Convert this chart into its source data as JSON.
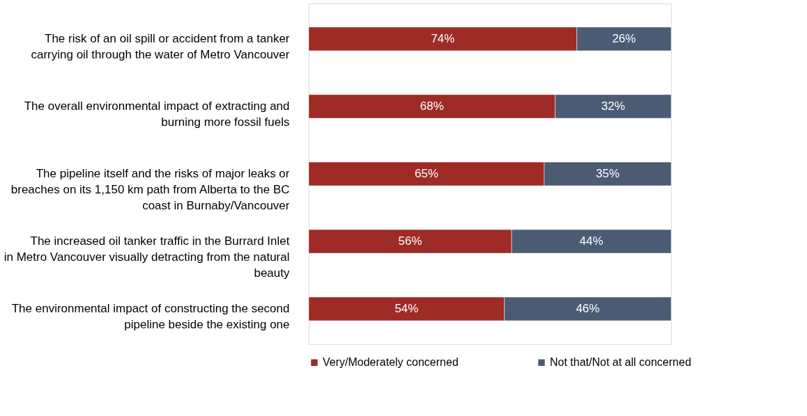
{
  "chart_data": {
    "type": "bar",
    "orientation": "horizontal",
    "stacked": true,
    "legend": "bottom",
    "grid": false,
    "tick_labels": "y",
    "categories": [
      "The risk of an oil spill or accident from a tanker carrying oil through the water of Metro Vancouver",
      "The overall environmental impact of extracting and burning more fossil fuels",
      "The pipeline itself and the risks of major leaks or breaches on its 1,150 km path from Alberta to the BC coast in Burnaby/Vancouver",
      "The increased oil tanker traffic in the Burrard Inlet in Metro Vancouver visually detracting from the natural beauty",
      "The environmental impact of constructing the second pipeline beside the existing one"
    ],
    "series": [
      {
        "name": "Very/Moderately concerned",
        "color": "#9e2b26",
        "values": [
          74,
          68,
          65,
          56,
          54
        ],
        "value_labels": [
          "74%",
          "68%",
          "65%",
          "56%",
          "54%"
        ]
      },
      {
        "name": "Not that/Not at all concerned",
        "color": "#4b5b74",
        "values": [
          26,
          32,
          35,
          44,
          46
        ],
        "value_labels": [
          "26%",
          "32%",
          "35%",
          "44%",
          "46%"
        ]
      }
    ]
  }
}
